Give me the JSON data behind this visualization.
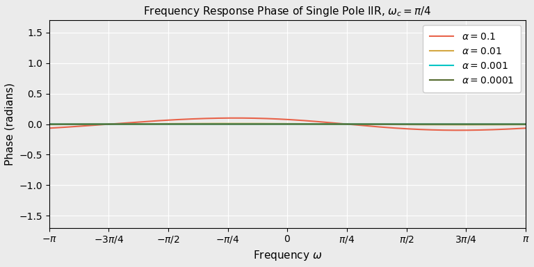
{
  "title": "Frequency Response Phase of Single Pole IIR, $\\omega_c = \\pi/4$",
  "xlabel": "Frequency $\\omega$",
  "ylabel": "Phase (radians)",
  "alphas": [
    0.1,
    0.01,
    0.001,
    0.0001
  ],
  "alpha_labels": [
    "$\\alpha = 0.1$",
    "$\\alpha = 0.01$",
    "$\\alpha = 0.001$",
    "$\\alpha = 0.0001$"
  ],
  "colors": [
    "#E8634A",
    "#D4A843",
    "#00C5C5",
    "#556B2F"
  ],
  "linewidths": [
    1.5,
    1.5,
    1.5,
    1.5
  ],
  "omega_c": 0.7853981633974483,
  "ylim": [
    -1.7,
    1.7
  ],
  "grid": true,
  "background_color": "#ebebeb"
}
